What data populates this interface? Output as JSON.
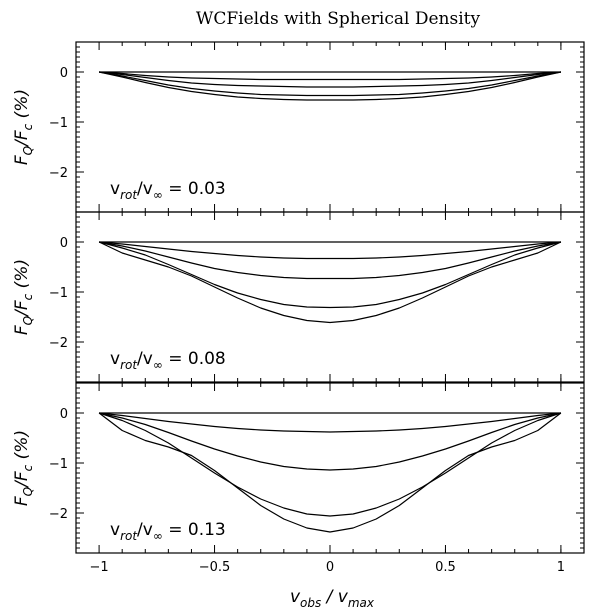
{
  "chart_data": {
    "title": "WCFields with Spherical Density",
    "xlabel": {
      "main": "v",
      "sub": "obs",
      "sep": " / ",
      "main2": "v",
      "sub2": "max"
    },
    "ylabel": {
      "f1": "F",
      "s1": "Q",
      "slash": "/",
      "f2": "F",
      "s2": "c",
      "unit": "(%)"
    },
    "xlim": [
      -1.1,
      1.1
    ],
    "xticks": [
      -1,
      -0.5,
      0,
      0.5,
      1
    ],
    "xtick_labels": [
      "−1",
      "−0.5",
      "0",
      "0.5",
      "1"
    ],
    "panels": [
      {
        "type": "line",
        "ylim": [
          -2.8,
          0.6
        ],
        "yticks": [
          0,
          -1,
          -2
        ],
        "ytick_labels": [
          "0",
          "−1",
          "−2"
        ],
        "annotation": {
          "v1": "v",
          "s1": "rot",
          "slash": "/",
          "v2": "v",
          "s2": "∞",
          "value": "=  0.03"
        },
        "series": [
          {
            "values": [
              0,
              0,
              0,
              0,
              0,
              0,
              0,
              0,
              0,
              0,
              0,
              0,
              0,
              0,
              0,
              0,
              0,
              0,
              0,
              0,
              0
            ]
          },
          {
            "values": [
              0,
              -0.03,
              -0.07,
              -0.1,
              -0.12,
              -0.13,
              -0.14,
              -0.15,
              -0.15,
              -0.15,
              -0.15,
              -0.15,
              -0.15,
              -0.15,
              -0.14,
              -0.13,
              -0.12,
              -0.1,
              -0.07,
              -0.03,
              0
            ]
          },
          {
            "values": [
              0,
              -0.05,
              -0.11,
              -0.17,
              -0.22,
              -0.25,
              -0.27,
              -0.28,
              -0.29,
              -0.3,
              -0.3,
              -0.3,
              -0.29,
              -0.28,
              -0.27,
              -0.25,
              -0.22,
              -0.17,
              -0.11,
              -0.05,
              0
            ]
          },
          {
            "values": [
              0,
              -0.08,
              -0.17,
              -0.26,
              -0.33,
              -0.38,
              -0.42,
              -0.45,
              -0.46,
              -0.47,
              -0.47,
              -0.47,
              -0.46,
              -0.45,
              -0.42,
              -0.38,
              -0.33,
              -0.26,
              -0.17,
              -0.08,
              0
            ]
          },
          {
            "values": [
              0,
              -0.1,
              -0.21,
              -0.31,
              -0.39,
              -0.45,
              -0.5,
              -0.53,
              -0.55,
              -0.56,
              -0.56,
              -0.56,
              -0.55,
              -0.53,
              -0.5,
              -0.45,
              -0.39,
              -0.31,
              -0.21,
              -0.1,
              0
            ]
          }
        ]
      },
      {
        "type": "line",
        "ylim": [
          -2.8,
          0.6
        ],
        "yticks": [
          0,
          -1,
          -2
        ],
        "ytick_labels": [
          "0",
          "−1",
          "−2"
        ],
        "annotation": {
          "v1": "v",
          "s1": "rot",
          "slash": "/",
          "v2": "v",
          "s2": "∞",
          "value": "=  0.08"
        },
        "series": [
          {
            "values": [
              0,
              0,
              0,
              0,
              0,
              0,
              0,
              0,
              0,
              0,
              0,
              0,
              0,
              0,
              0,
              0,
              0,
              0,
              0,
              0,
              0
            ]
          },
          {
            "values": [
              0,
              -0.04,
              -0.09,
              -0.14,
              -0.19,
              -0.23,
              -0.27,
              -0.3,
              -0.32,
              -0.33,
              -0.33,
              -0.33,
              -0.32,
              -0.3,
              -0.27,
              -0.23,
              -0.19,
              -0.14,
              -0.09,
              -0.04,
              0
            ]
          },
          {
            "values": [
              0,
              -0.08,
              -0.18,
              -0.3,
              -0.42,
              -0.53,
              -0.61,
              -0.67,
              -0.71,
              -0.73,
              -0.73,
              -0.73,
              -0.71,
              -0.67,
              -0.61,
              -0.53,
              -0.42,
              -0.3,
              -0.18,
              -0.08,
              0
            ]
          },
          {
            "values": [
              0,
              -0.12,
              -0.26,
              -0.45,
              -0.65,
              -0.85,
              -1.02,
              -1.15,
              -1.25,
              -1.3,
              -1.31,
              -1.3,
              -1.25,
              -1.15,
              -1.02,
              -0.85,
              -0.65,
              -0.45,
              -0.26,
              -0.12,
              0
            ]
          },
          {
            "values": [
              0,
              -0.22,
              -0.36,
              -0.5,
              -0.68,
              -0.9,
              -1.12,
              -1.32,
              -1.47,
              -1.57,
              -1.61,
              -1.57,
              -1.47,
              -1.32,
              -1.12,
              -0.9,
              -0.68,
              -0.5,
              -0.36,
              -0.22,
              0
            ]
          }
        ]
      },
      {
        "type": "line",
        "ylim": [
          -2.8,
          0.6
        ],
        "yticks": [
          0,
          -1,
          -2
        ],
        "ytick_labels": [
          "0",
          "−1",
          "−2"
        ],
        "annotation": {
          "v1": "v",
          "s1": "rot",
          "slash": "/",
          "v2": "v",
          "s2": "∞",
          "value": "=  0.13"
        },
        "series": [
          {
            "values": [
              0,
              0,
              0,
              0,
              0,
              0,
              0,
              0,
              0,
              0,
              0,
              0,
              0,
              0,
              0,
              0,
              0,
              0,
              0,
              0,
              0
            ]
          },
          {
            "values": [
              0,
              -0.05,
              -0.11,
              -0.17,
              -0.22,
              -0.27,
              -0.31,
              -0.34,
              -0.36,
              -0.37,
              -0.38,
              -0.37,
              -0.36,
              -0.34,
              -0.31,
              -0.27,
              -0.22,
              -0.17,
              -0.11,
              -0.05,
              0
            ]
          },
          {
            "values": [
              0,
              -0.1,
              -0.23,
              -0.39,
              -0.56,
              -0.72,
              -0.86,
              -0.98,
              -1.07,
              -1.12,
              -1.14,
              -1.12,
              -1.07,
              -0.98,
              -0.86,
              -0.72,
              -0.56,
              -0.39,
              -0.23,
              -0.1,
              0
            ]
          },
          {
            "values": [
              0,
              -0.15,
              -0.35,
              -0.6,
              -0.9,
              -1.2,
              -1.48,
              -1.72,
              -1.9,
              -2.02,
              -2.06,
              -2.02,
              -1.9,
              -1.72,
              -1.48,
              -1.2,
              -0.9,
              -0.6,
              -0.35,
              -0.15,
              0
            ]
          },
          {
            "values": [
              0,
              -0.35,
              -0.55,
              -0.68,
              -0.85,
              -1.15,
              -1.5,
              -1.85,
              -2.12,
              -2.3,
              -2.38,
              -2.3,
              -2.12,
              -1.85,
              -1.5,
              -1.15,
              -0.85,
              -0.68,
              -0.55,
              -0.35,
              0
            ]
          }
        ]
      }
    ],
    "x": [
      -1,
      -0.9,
      -0.8,
      -0.7,
      -0.6,
      -0.5,
      -0.4,
      -0.3,
      -0.2,
      -0.1,
      0,
      0.1,
      0.2,
      0.3,
      0.4,
      0.5,
      0.6,
      0.7,
      0.8,
      0.9,
      1
    ]
  }
}
